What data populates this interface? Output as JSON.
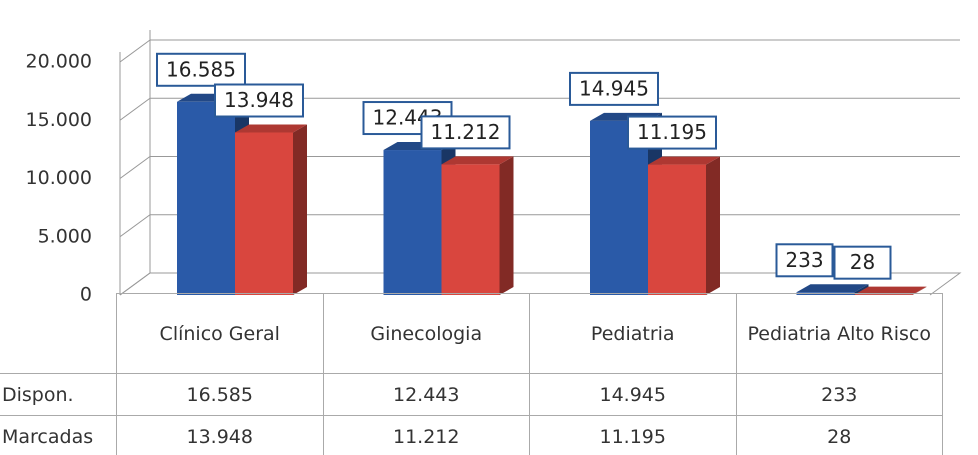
{
  "chart_data": {
    "type": "bar3d",
    "categories": [
      "Clínico Geral",
      "Ginecologia",
      "Pediatria",
      "Pediatria Alto Risco"
    ],
    "series": [
      {
        "name": "Dispon.",
        "color": "#2a5aa8",
        "values": [
          16585,
          12443,
          14945,
          233
        ],
        "value_labels": [
          "16.585",
          "12.443",
          "14.945",
          "233"
        ]
      },
      {
        "name": "Marcadas",
        "color": "#d9463e",
        "values": [
          13948,
          11212,
          11195,
          28
        ],
        "value_labels": [
          "13.948",
          "11.212",
          "11.195",
          "28"
        ]
      }
    ],
    "ylim": [
      0,
      20000
    ],
    "yticks": [
      0,
      {
        "value": 5000,
        "label": "5.000"
      },
      {
        "value": 10000,
        "label": "10.000"
      },
      {
        "value": 15000,
        "label": "15.000"
      },
      {
        "value": 20000,
        "label": "20.000"
      }
    ],
    "grid": true
  }
}
